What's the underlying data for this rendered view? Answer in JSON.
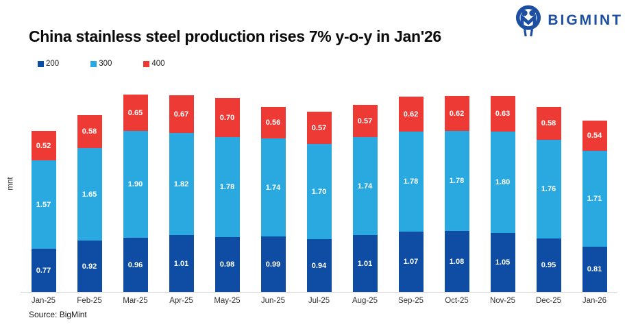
{
  "header": {
    "title": "China stainless steel production rises 7% y-o-y in Jan'26",
    "brand": {
      "name": "BIGMINT",
      "color": "#1c4ea1"
    }
  },
  "legend": [
    {
      "label": "200",
      "color": "#0e4da3"
    },
    {
      "label": "300",
      "color": "#29a9e0"
    },
    {
      "label": "400",
      "color": "#ee3a34"
    }
  ],
  "chart_data": {
    "type": "bar",
    "stacked": true,
    "title": "China stainless steel production rises 7% y-o-y in Jan'26",
    "xlabel": "",
    "ylabel": "mnt",
    "ylim": [
      0,
      3.6
    ],
    "grid": false,
    "legend_position": "top-left",
    "value_label_format": "2-decimals-white",
    "categories": [
      "Jan-25",
      "Feb-25",
      "Mar-25",
      "Apr-25",
      "May-25",
      "Jun-25",
      "Jul-25",
      "Aug-25",
      "Sep-25",
      "Oct-25",
      "Nov-25",
      "Dec-25",
      "Jan-26"
    ],
    "series": [
      {
        "name": "200",
        "color": "#0e4da3",
        "values": [
          0.77,
          0.92,
          0.96,
          1.01,
          0.98,
          0.99,
          0.94,
          1.01,
          1.07,
          1.08,
          1.05,
          0.95,
          0.81
        ]
      },
      {
        "name": "300",
        "color": "#29a9e0",
        "values": [
          1.57,
          1.65,
          1.9,
          1.82,
          1.78,
          1.74,
          1.7,
          1.74,
          1.78,
          1.78,
          1.8,
          1.76,
          1.71
        ]
      },
      {
        "name": "400",
        "color": "#ee3a34",
        "values": [
          0.52,
          0.58,
          0.65,
          0.67,
          0.7,
          0.56,
          0.57,
          0.57,
          0.62,
          0.62,
          0.63,
          0.58,
          0.54
        ]
      }
    ]
  },
  "footer": {
    "source": "Source: BigMint"
  }
}
